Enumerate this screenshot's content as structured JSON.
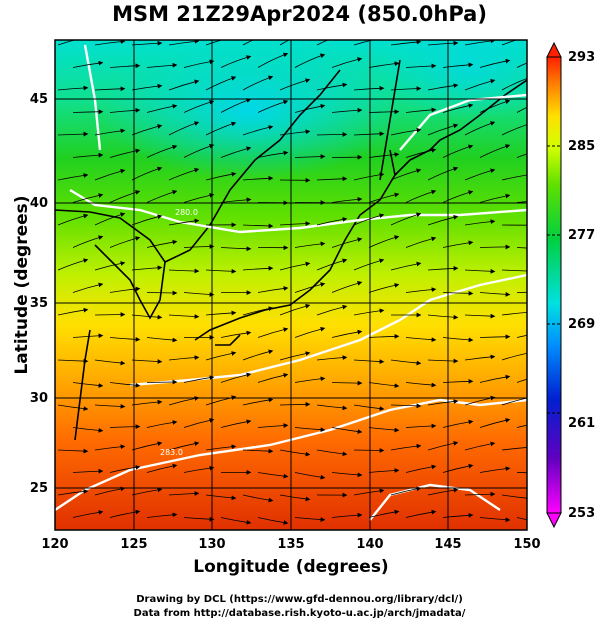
{
  "title": "MSM 21Z29Apr2024 (850.0hPa)",
  "xlabel": "Longitude (degrees)",
  "ylabel": "Latitude  (degrees)",
  "credits": {
    "line1": "Drawing by DCL (https://www.gfd-dennou.org/library/dcl/)",
    "line2": "Data from http://database.rish.kyoto-u.ac.jp/arch/jmadata/"
  },
  "chart_data": {
    "type": "heatmap",
    "x_ticks": [
      "120",
      "125",
      "130",
      "135",
      "140",
      "145",
      "150"
    ],
    "y_ticks": [
      "25",
      "30",
      "35",
      "40",
      "45"
    ],
    "xlim": [
      120,
      150
    ],
    "ylim": [
      22.5,
      47.5
    ],
    "grid": true,
    "colorbar": {
      "ticks": [
        "293",
        "285",
        "277",
        "269",
        "261",
        "253"
      ],
      "range": [
        253,
        293
      ],
      "colors": [
        "#ff00ff",
        "#0000cc",
        "#0080ff",
        "#00e0e0",
        "#00c040",
        "#20e000",
        "#b0ff00",
        "#ffff00",
        "#ff9000",
        "#ff2000"
      ]
    },
    "contour_labels": [
      "283.0",
      "280.0"
    ],
    "field": "temperature (K) with wind streamlines"
  }
}
